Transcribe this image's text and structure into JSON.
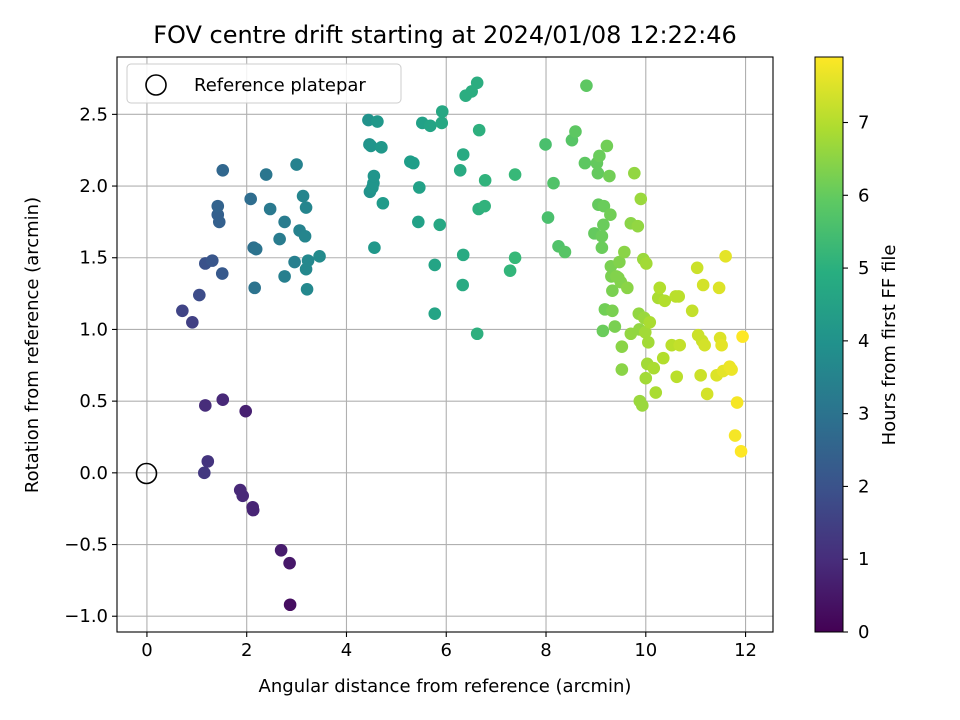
{
  "chart_data": {
    "type": "scatter",
    "title": "FOV centre drift starting at 2024/01/08 12:22:46",
    "xlabel": "Angular distance from reference (arcmin)",
    "ylabel": "Rotation from reference (arcmin)",
    "xlim": [
      -0.6,
      12.55
    ],
    "ylim": [
      -1.11,
      2.9
    ],
    "xticks": [
      0,
      2,
      4,
      6,
      8,
      10,
      12
    ],
    "yticks": [
      -1.0,
      -0.5,
      0.0,
      0.5,
      1.0,
      1.5,
      2.0,
      2.5
    ],
    "grid": true,
    "legend": {
      "position": "top-left",
      "entries": [
        "Reference platepar"
      ]
    },
    "reference_point": {
      "x": 0,
      "y": 0
    },
    "colorbar": {
      "label": "Hours from first FF file",
      "range": [
        0,
        7.9
      ],
      "ticks": [
        0,
        1,
        2,
        3,
        4,
        5,
        6,
        7
      ],
      "colormap": "viridis"
    },
    "points": [
      {
        "x": 1.15,
        "y": 0.0,
        "hours": 1.3
      },
      {
        "x": 1.22,
        "y": 0.08,
        "hours": 1.2
      },
      {
        "x": 1.87,
        "y": -0.12,
        "hours": 0.9
      },
      {
        "x": 1.92,
        "y": -0.16,
        "hours": 0.9
      },
      {
        "x": 2.12,
        "y": -0.24,
        "hours": 0.8
      },
      {
        "x": 2.13,
        "y": -0.26,
        "hours": 0.8
      },
      {
        "x": 2.69,
        "y": -0.54,
        "hours": 0.6
      },
      {
        "x": 2.86,
        "y": -0.63,
        "hours": 0.5
      },
      {
        "x": 2.87,
        "y": -0.92,
        "hours": 0.3
      },
      {
        "x": 1.17,
        "y": 0.47,
        "hours": 1.0
      },
      {
        "x": 1.52,
        "y": 0.51,
        "hours": 0.9
      },
      {
        "x": 1.98,
        "y": 0.43,
        "hours": 0.7
      },
      {
        "x": 0.71,
        "y": 1.13,
        "hours": 1.6
      },
      {
        "x": 0.91,
        "y": 1.05,
        "hours": 1.5
      },
      {
        "x": 1.05,
        "y": 1.24,
        "hours": 1.8
      },
      {
        "x": 1.17,
        "y": 1.46,
        "hours": 2.0
      },
      {
        "x": 1.31,
        "y": 1.48,
        "hours": 2.1
      },
      {
        "x": 1.51,
        "y": 1.39,
        "hours": 2.2
      },
      {
        "x": 1.42,
        "y": 1.8,
        "hours": 2.4
      },
      {
        "x": 1.45,
        "y": 1.75,
        "hours": 2.4
      },
      {
        "x": 1.42,
        "y": 1.86,
        "hours": 2.5
      },
      {
        "x": 1.52,
        "y": 2.11,
        "hours": 2.6
      },
      {
        "x": 2.08,
        "y": 1.91,
        "hours": 2.8
      },
      {
        "x": 2.14,
        "y": 1.57,
        "hours": 2.9
      },
      {
        "x": 2.19,
        "y": 1.56,
        "hours": 3.0
      },
      {
        "x": 2.16,
        "y": 1.29,
        "hours": 3.0
      },
      {
        "x": 2.39,
        "y": 2.08,
        "hours": 3.1
      },
      {
        "x": 2.47,
        "y": 1.84,
        "hours": 3.2
      },
      {
        "x": 2.66,
        "y": 1.63,
        "hours": 3.3
      },
      {
        "x": 2.76,
        "y": 1.75,
        "hours": 3.3
      },
      {
        "x": 2.76,
        "y": 1.37,
        "hours": 3.4
      },
      {
        "x": 2.96,
        "y": 1.47,
        "hours": 3.4
      },
      {
        "x": 3.0,
        "y": 2.15,
        "hours": 3.5
      },
      {
        "x": 3.06,
        "y": 1.69,
        "hours": 3.5
      },
      {
        "x": 3.13,
        "y": 1.93,
        "hours": 3.6
      },
      {
        "x": 3.17,
        "y": 1.65,
        "hours": 3.6
      },
      {
        "x": 3.19,
        "y": 1.85,
        "hours": 3.6
      },
      {
        "x": 3.19,
        "y": 1.42,
        "hours": 3.7
      },
      {
        "x": 3.21,
        "y": 1.28,
        "hours": 3.7
      },
      {
        "x": 3.23,
        "y": 1.48,
        "hours": 3.7
      },
      {
        "x": 3.46,
        "y": 1.51,
        "hours": 3.8
      },
      {
        "x": 4.44,
        "y": 2.46,
        "hours": 4.0
      },
      {
        "x": 4.46,
        "y": 2.29,
        "hours": 4.0
      },
      {
        "x": 4.47,
        "y": 1.96,
        "hours": 4.0
      },
      {
        "x": 4.49,
        "y": 2.28,
        "hours": 4.1
      },
      {
        "x": 4.52,
        "y": 1.99,
        "hours": 4.1
      },
      {
        "x": 4.54,
        "y": 2.02,
        "hours": 4.1
      },
      {
        "x": 4.55,
        "y": 2.07,
        "hours": 4.1
      },
      {
        "x": 4.56,
        "y": 1.57,
        "hours": 4.2
      },
      {
        "x": 4.62,
        "y": 2.45,
        "hours": 4.2
      },
      {
        "x": 4.7,
        "y": 2.27,
        "hours": 4.2
      },
      {
        "x": 4.73,
        "y": 1.88,
        "hours": 4.3
      },
      {
        "x": 5.28,
        "y": 2.17,
        "hours": 4.4
      },
      {
        "x": 5.34,
        "y": 2.16,
        "hours": 4.4
      },
      {
        "x": 5.46,
        "y": 1.99,
        "hours": 4.5
      },
      {
        "x": 5.44,
        "y": 1.75,
        "hours": 4.5
      },
      {
        "x": 5.52,
        "y": 2.44,
        "hours": 4.5
      },
      {
        "x": 5.68,
        "y": 2.42,
        "hours": 4.6
      },
      {
        "x": 5.77,
        "y": 1.45,
        "hours": 4.6
      },
      {
        "x": 5.77,
        "y": 1.11,
        "hours": 4.6
      },
      {
        "x": 5.87,
        "y": 1.73,
        "hours": 4.7
      },
      {
        "x": 5.91,
        "y": 2.44,
        "hours": 4.7
      },
      {
        "x": 5.92,
        "y": 2.52,
        "hours": 4.7
      },
      {
        "x": 6.28,
        "y": 2.11,
        "hours": 4.8
      },
      {
        "x": 6.34,
        "y": 2.22,
        "hours": 4.8
      },
      {
        "x": 6.34,
        "y": 1.52,
        "hours": 4.8
      },
      {
        "x": 6.33,
        "y": 1.31,
        "hours": 4.8
      },
      {
        "x": 6.39,
        "y": 2.63,
        "hours": 4.9
      },
      {
        "x": 6.51,
        "y": 2.66,
        "hours": 4.9
      },
      {
        "x": 6.62,
        "y": 2.72,
        "hours": 4.9
      },
      {
        "x": 6.62,
        "y": 0.97,
        "hours": 5.0
      },
      {
        "x": 6.65,
        "y": 1.84,
        "hours": 5.0
      },
      {
        "x": 6.66,
        "y": 2.39,
        "hours": 5.0
      },
      {
        "x": 6.77,
        "y": 1.86,
        "hours": 5.1
      },
      {
        "x": 6.78,
        "y": 2.04,
        "hours": 5.1
      },
      {
        "x": 7.28,
        "y": 1.41,
        "hours": 5.2
      },
      {
        "x": 7.38,
        "y": 1.5,
        "hours": 5.3
      },
      {
        "x": 7.38,
        "y": 2.08,
        "hours": 5.3
      },
      {
        "x": 7.99,
        "y": 2.29,
        "hours": 5.6
      },
      {
        "x": 8.04,
        "y": 1.78,
        "hours": 5.6
      },
      {
        "x": 8.15,
        "y": 2.02,
        "hours": 5.7
      },
      {
        "x": 8.25,
        "y": 1.58,
        "hours": 5.7
      },
      {
        "x": 8.38,
        "y": 1.54,
        "hours": 5.8
      },
      {
        "x": 8.52,
        "y": 2.32,
        "hours": 5.8
      },
      {
        "x": 8.59,
        "y": 2.38,
        "hours": 5.9
      },
      {
        "x": 8.78,
        "y": 2.16,
        "hours": 5.9
      },
      {
        "x": 8.81,
        "y": 2.7,
        "hours": 5.9
      },
      {
        "x": 8.97,
        "y": 1.67,
        "hours": 6.0
      },
      {
        "x": 9.02,
        "y": 2.16,
        "hours": 6.0
      },
      {
        "x": 9.04,
        "y": 2.09,
        "hours": 6.0
      },
      {
        "x": 9.05,
        "y": 1.87,
        "hours": 6.0
      },
      {
        "x": 9.07,
        "y": 2.21,
        "hours": 6.1
      },
      {
        "x": 9.12,
        "y": 1.57,
        "hours": 6.1
      },
      {
        "x": 9.15,
        "y": 1.73,
        "hours": 6.1
      },
      {
        "x": 9.12,
        "y": 1.65,
        "hours": 6.1
      },
      {
        "x": 9.16,
        "y": 1.86,
        "hours": 6.1
      },
      {
        "x": 9.14,
        "y": 0.99,
        "hours": 6.1
      },
      {
        "x": 9.18,
        "y": 1.14,
        "hours": 6.2
      },
      {
        "x": 9.22,
        "y": 2.28,
        "hours": 6.2
      },
      {
        "x": 9.27,
        "y": 2.07,
        "hours": 6.2
      },
      {
        "x": 9.29,
        "y": 1.8,
        "hours": 6.2
      },
      {
        "x": 9.3,
        "y": 1.44,
        "hours": 6.3
      },
      {
        "x": 9.31,
        "y": 1.37,
        "hours": 6.3
      },
      {
        "x": 9.33,
        "y": 1.27,
        "hours": 6.3
      },
      {
        "x": 9.33,
        "y": 1.13,
        "hours": 6.3
      },
      {
        "x": 9.38,
        "y": 1.02,
        "hours": 6.3
      },
      {
        "x": 9.41,
        "y": 1.37,
        "hours": 6.4
      },
      {
        "x": 9.45,
        "y": 1.36,
        "hours": 6.4
      },
      {
        "x": 9.47,
        "y": 1.47,
        "hours": 6.4
      },
      {
        "x": 9.5,
        "y": 1.33,
        "hours": 6.4
      },
      {
        "x": 9.52,
        "y": 0.88,
        "hours": 6.5
      },
      {
        "x": 9.52,
        "y": 0.72,
        "hours": 6.5
      },
      {
        "x": 9.57,
        "y": 1.54,
        "hours": 6.5
      },
      {
        "x": 9.63,
        "y": 1.29,
        "hours": 6.5
      },
      {
        "x": 9.7,
        "y": 1.74,
        "hours": 6.5
      },
      {
        "x": 9.7,
        "y": 0.97,
        "hours": 6.6
      },
      {
        "x": 9.77,
        "y": 2.09,
        "hours": 6.6
      },
      {
        "x": 9.84,
        "y": 1.72,
        "hours": 6.6
      },
      {
        "x": 9.86,
        "y": 1.11,
        "hours": 6.6
      },
      {
        "x": 9.87,
        "y": 1.0,
        "hours": 6.6
      },
      {
        "x": 9.88,
        "y": 0.5,
        "hours": 6.7
      },
      {
        "x": 9.9,
        "y": 1.91,
        "hours": 6.7
      },
      {
        "x": 9.93,
        "y": 0.47,
        "hours": 6.7
      },
      {
        "x": 9.95,
        "y": 1.49,
        "hours": 6.7
      },
      {
        "x": 9.97,
        "y": 1.08,
        "hours": 6.7
      },
      {
        "x": 9.99,
        "y": 0.98,
        "hours": 6.8
      },
      {
        "x": 10.0,
        "y": 0.66,
        "hours": 6.8
      },
      {
        "x": 10.01,
        "y": 1.46,
        "hours": 6.8
      },
      {
        "x": 10.03,
        "y": 0.76,
        "hours": 6.8
      },
      {
        "x": 10.05,
        "y": 0.91,
        "hours": 6.8
      },
      {
        "x": 10.08,
        "y": 1.05,
        "hours": 6.9
      },
      {
        "x": 10.16,
        "y": 0.73,
        "hours": 6.9
      },
      {
        "x": 10.2,
        "y": 0.56,
        "hours": 6.9
      },
      {
        "x": 10.25,
        "y": 1.22,
        "hours": 6.9
      },
      {
        "x": 10.28,
        "y": 1.29,
        "hours": 7.0
      },
      {
        "x": 10.35,
        "y": 0.8,
        "hours": 7.0
      },
      {
        "x": 10.38,
        "y": 1.2,
        "hours": 7.0
      },
      {
        "x": 10.52,
        "y": 0.89,
        "hours": 7.1
      },
      {
        "x": 10.6,
        "y": 1.23,
        "hours": 7.1
      },
      {
        "x": 10.62,
        "y": 0.67,
        "hours": 7.1
      },
      {
        "x": 10.66,
        "y": 1.23,
        "hours": 7.1
      },
      {
        "x": 10.68,
        "y": 0.89,
        "hours": 7.2
      },
      {
        "x": 10.93,
        "y": 1.13,
        "hours": 7.2
      },
      {
        "x": 11.03,
        "y": 1.43,
        "hours": 7.3
      },
      {
        "x": 11.05,
        "y": 0.96,
        "hours": 7.3
      },
      {
        "x": 11.1,
        "y": 0.68,
        "hours": 7.3
      },
      {
        "x": 11.13,
        "y": 0.92,
        "hours": 7.3
      },
      {
        "x": 11.15,
        "y": 1.31,
        "hours": 7.4
      },
      {
        "x": 11.18,
        "y": 0.89,
        "hours": 7.4
      },
      {
        "x": 11.23,
        "y": 0.55,
        "hours": 7.4
      },
      {
        "x": 11.42,
        "y": 0.68,
        "hours": 7.5
      },
      {
        "x": 11.47,
        "y": 1.29,
        "hours": 7.5
      },
      {
        "x": 11.49,
        "y": 0.94,
        "hours": 7.5
      },
      {
        "x": 11.52,
        "y": 0.89,
        "hours": 7.6
      },
      {
        "x": 11.55,
        "y": 0.71,
        "hours": 7.6
      },
      {
        "x": 11.6,
        "y": 1.51,
        "hours": 7.6
      },
      {
        "x": 11.68,
        "y": 0.74,
        "hours": 7.7
      },
      {
        "x": 11.72,
        "y": 0.72,
        "hours": 7.7
      },
      {
        "x": 11.79,
        "y": 0.26,
        "hours": 7.8
      },
      {
        "x": 11.83,
        "y": 0.49,
        "hours": 7.8
      },
      {
        "x": 11.91,
        "y": 0.15,
        "hours": 7.9
      },
      {
        "x": 11.94,
        "y": 0.95,
        "hours": 7.9
      }
    ]
  }
}
